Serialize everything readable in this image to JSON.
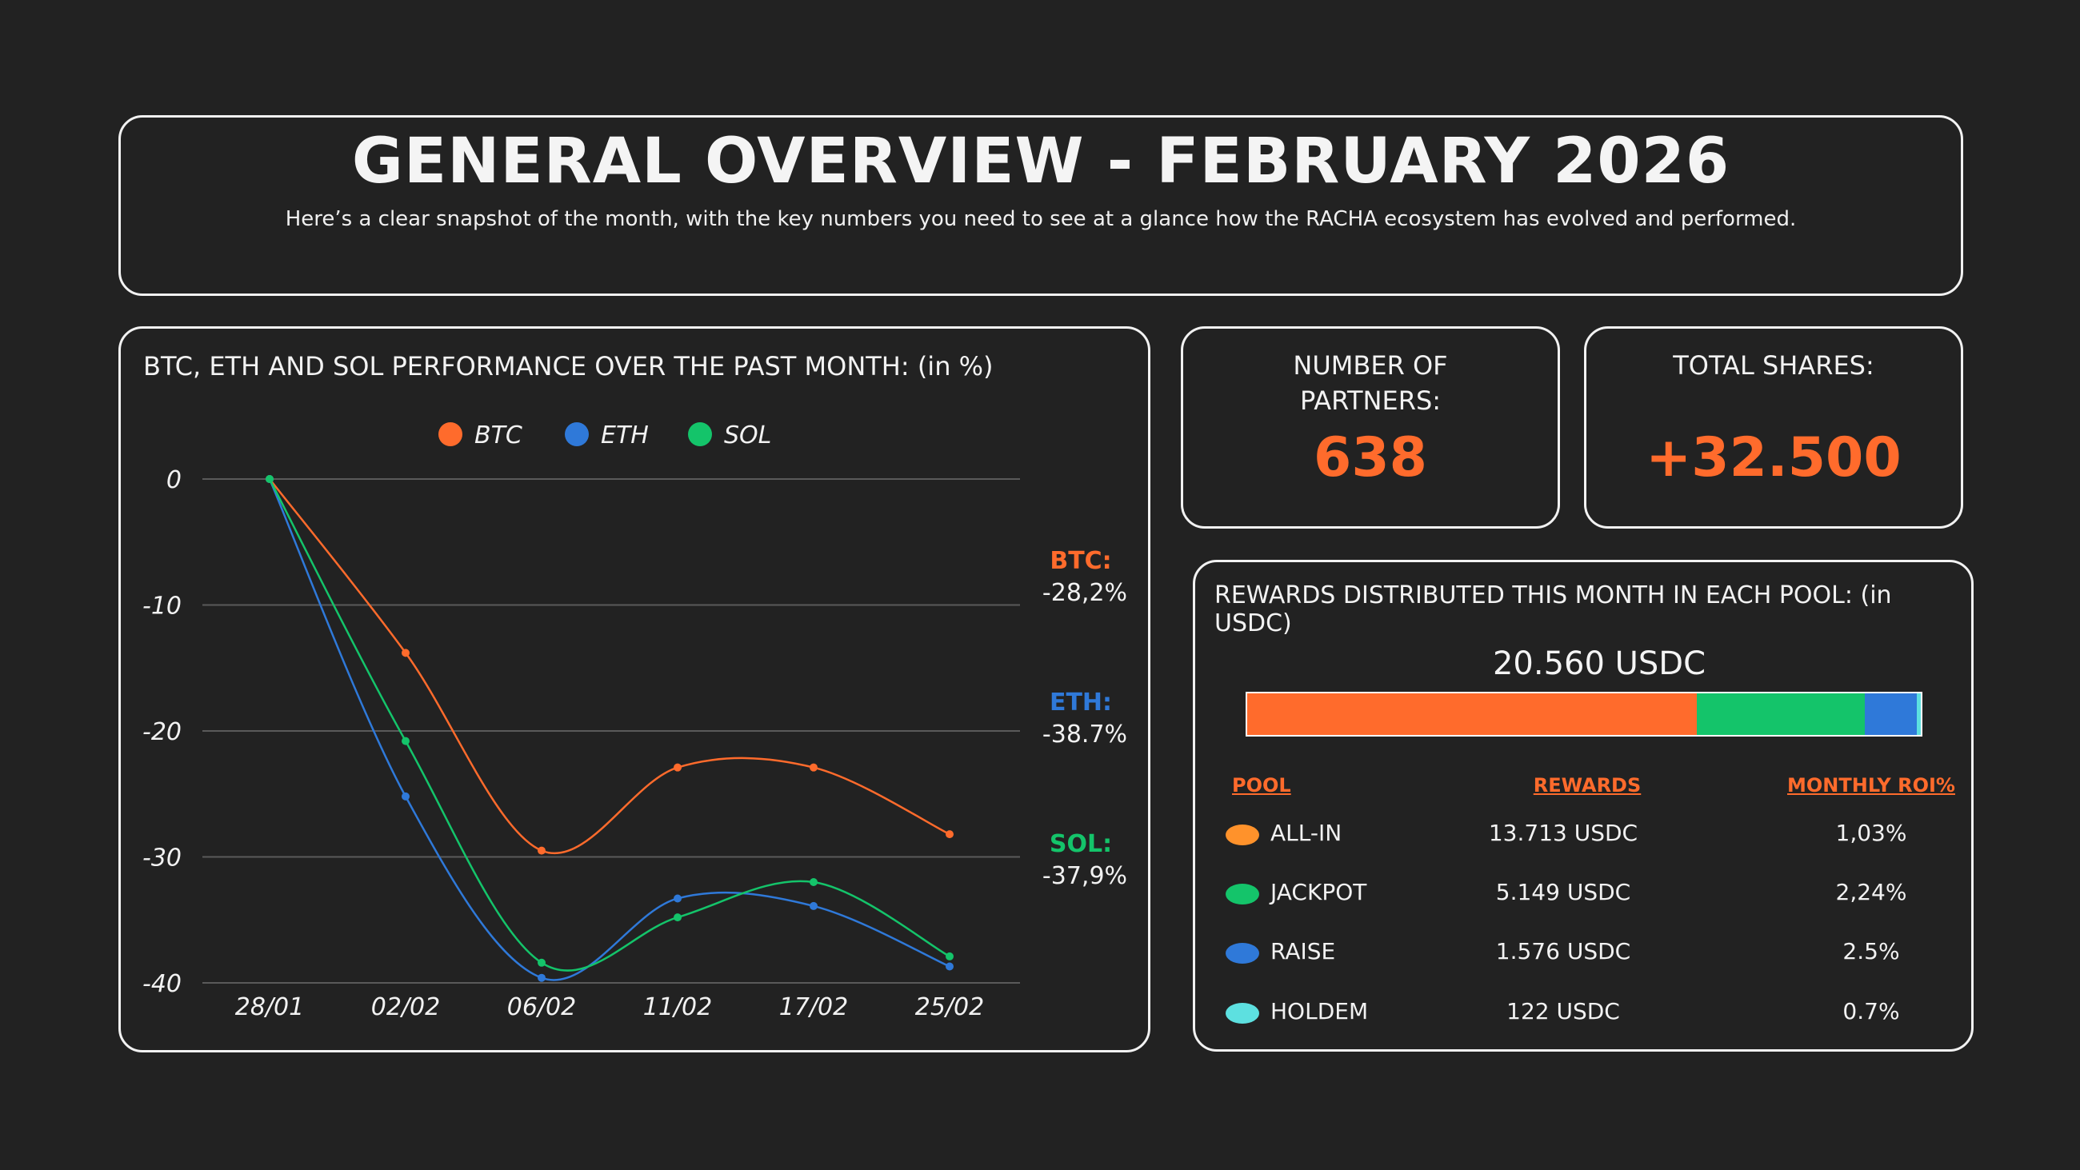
{
  "header": {
    "title": "GENERAL OVERVIEW - FEBRUARY 2026",
    "subtitle": "Here’s a clear snapshot of the month, with the key numbers you need to see at a glance how the RACHA ecosystem has evolved and performed."
  },
  "colors": {
    "background": "#222222",
    "accent": "#ff6b2c",
    "btc": "#ff6b2c",
    "eth": "#2f79d9",
    "sol": "#14c46a",
    "all_in": "#ff922b",
    "jackpot": "#14c46a",
    "raise": "#2f79d9",
    "holdem": "#5de0e0"
  },
  "chart_data": {
    "type": "line",
    "title": "BTC, ETH AND SOL PERFORMANCE OVER THE PAST MONTH: (in %)",
    "categories": [
      "28/01",
      "02/02",
      "06/02",
      "11/02",
      "17/02",
      "25/02"
    ],
    "ylim": [
      -40,
      0
    ],
    "yticks": [
      0,
      -10,
      -20,
      -30,
      -40
    ],
    "grid": true,
    "legend_position": "top",
    "series": [
      {
        "name": "BTC",
        "color": "#ff6b2c",
        "values": [
          0,
          -13.8,
          -29.5,
          -22.9,
          -22.9,
          -28.2
        ]
      },
      {
        "name": "ETH",
        "color": "#2f79d9",
        "values": [
          0,
          -25.2,
          -39.6,
          -33.3,
          -33.9,
          -38.7
        ]
      },
      {
        "name": "SOL",
        "color": "#14c46a",
        "values": [
          0,
          -20.8,
          -38.4,
          -34.8,
          -32.0,
          -37.9
        ]
      }
    ],
    "annotations": [
      {
        "label": "BTC:",
        "value": "-28,2%",
        "color": "#ff6b2c"
      },
      {
        "label": "ETH:",
        "value": "-38.7%",
        "color": "#2f79d9"
      },
      {
        "label": "SOL:",
        "value": "-37,9%",
        "color": "#14c46a"
      }
    ]
  },
  "partners": {
    "label": "NUMBER OF PARTNERS:",
    "value": "638"
  },
  "shares": {
    "label": "TOTAL SHARES:",
    "value": "+32.500"
  },
  "rewards": {
    "title": "REWARDS DISTRIBUTED THIS MONTH IN EACH POOL: (in USDC)",
    "total": "20.560 USDC",
    "headers": {
      "pool": "POOL",
      "rewards": "REWARDS",
      "roi": "MONTHLY ROI%"
    },
    "pools": [
      {
        "name": "ALL-IN",
        "rewards": "13.713 USDC",
        "amount": 13713,
        "roi": "1,03%",
        "color": "#ff922b",
        "bar_color": "#ff6b2c"
      },
      {
        "name": "JACKPOT",
        "rewards": "5.149 USDC",
        "amount": 5149,
        "roi": "2,24%",
        "color": "#14c46a",
        "bar_color": "#14c46a"
      },
      {
        "name": "RAISE",
        "rewards": "1.576 USDC",
        "amount": 1576,
        "roi": "2.5%",
        "color": "#2f79d9",
        "bar_color": "#2f79d9"
      },
      {
        "name": "HOLDEM",
        "rewards": "122 USDC",
        "amount": 122,
        "roi": "0.7%",
        "color": "#5de0e0",
        "bar_color": "#5de0e0"
      }
    ]
  }
}
